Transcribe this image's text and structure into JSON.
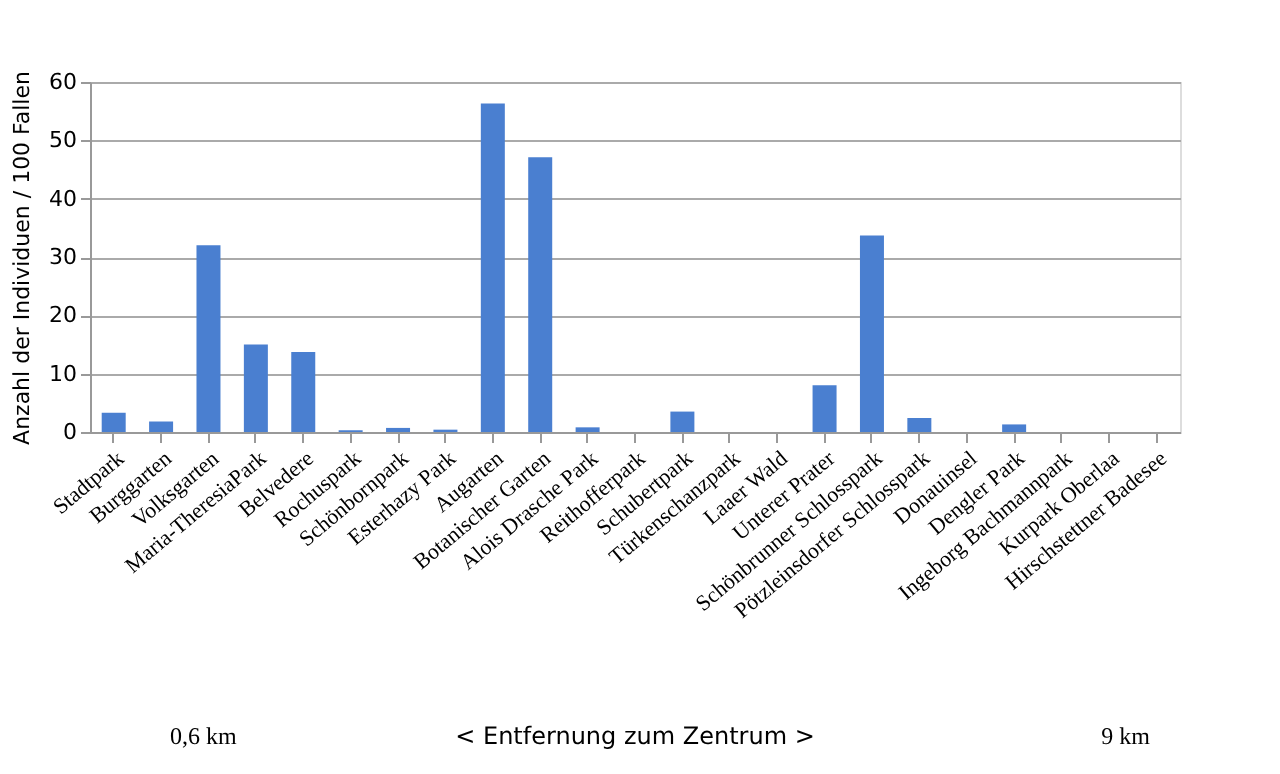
{
  "chart_data": {
    "type": "bar",
    "ylabel": "Anzahl der Individuen / 100 Fallen",
    "categories": [
      "Stadtpark",
      "Burggarten",
      "Volksgarten",
      "Maria-TheresiaPark",
      "Belvedere",
      "Rochuspark",
      "Schönbornpark",
      "Esterhazy Park",
      "Augarten",
      "Botanischer Garten",
      "Alois Drasche Park",
      "Reithofferpark",
      "Schubertpark",
      "Türkenschanzpark",
      "Laaer Wald",
      "Unterer Prater",
      "Schönbrunner Schlosspark",
      "Pötzleinsdorfer Schlosspark",
      "Donauinsel",
      "Dengler Park",
      "Ingeborg Bachmannpark",
      "Kurpark Oberlaa",
      "Hirschstettner Badesee"
    ],
    "values": [
      3.3,
      1.8,
      32,
      15,
      13.7,
      0.3,
      0.7,
      0.4,
      56.3,
      47.1,
      0.8,
      0,
      3.5,
      0,
      0,
      8,
      33.7,
      2.4,
      0,
      1.3,
      0,
      0,
      0
    ],
    "color": "#4a7fd0",
    "ylim": [
      0,
      60
    ],
    "yticks": [
      0,
      10,
      20,
      30,
      40,
      50,
      60
    ],
    "grid": "y",
    "annotations": [
      "0,6 km",
      "<   Entfernung zum Zentrum   >",
      "9 km"
    ]
  }
}
